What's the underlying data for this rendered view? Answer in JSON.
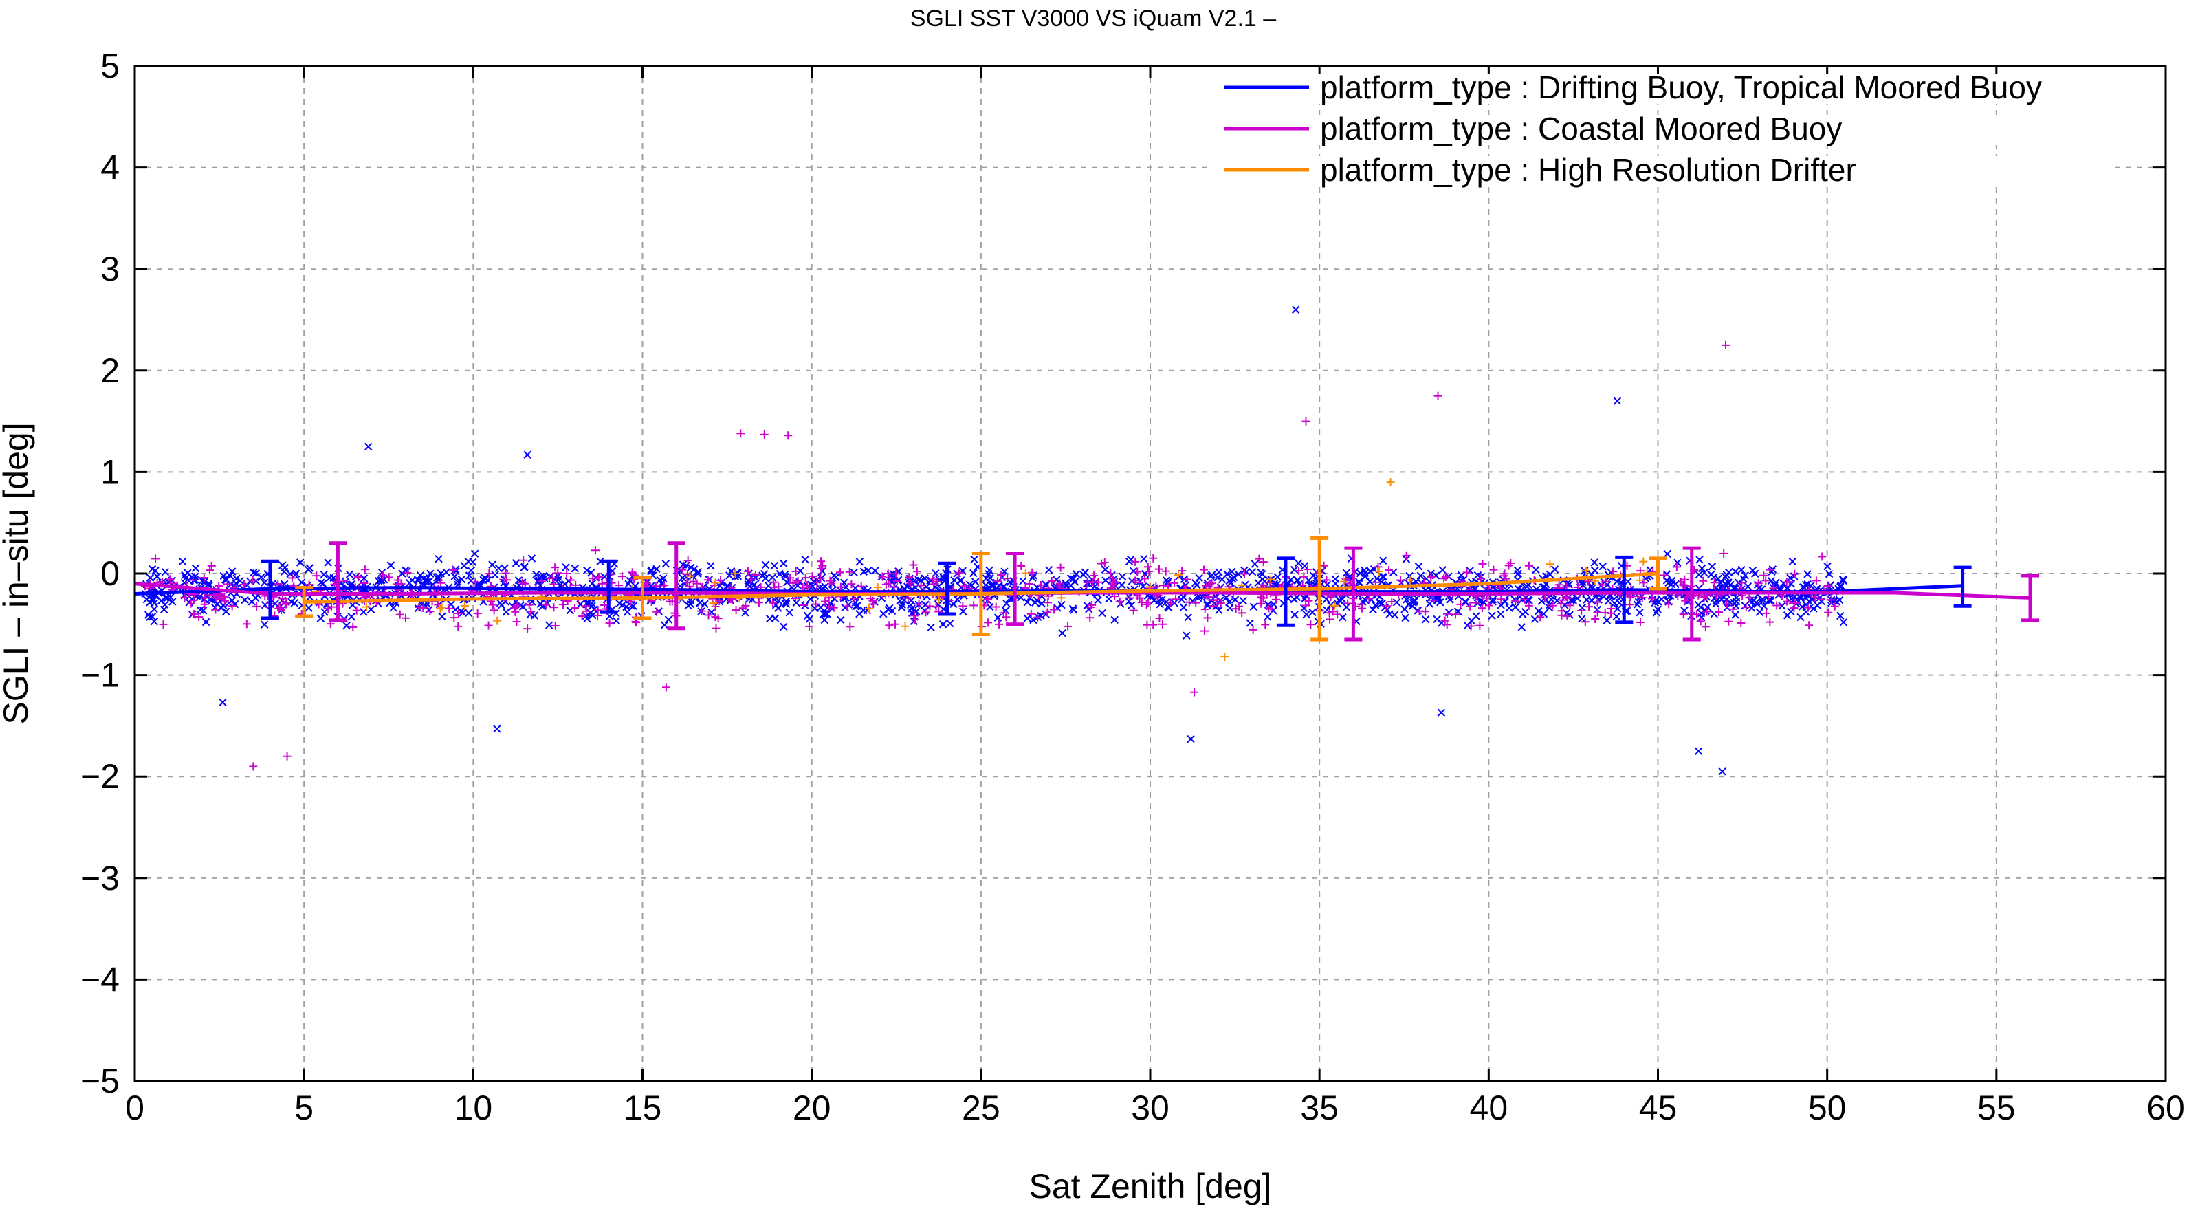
{
  "chart_data": {
    "type": "scatter",
    "title": "SGLI SST V3000 VS iQuam V2.1  –",
    "xlabel": "Sat Zenith [deg]",
    "ylabel": "SGLI – in–situ [deg]",
    "xlim": [
      0,
      60
    ],
    "ylim": [
      -5,
      5
    ],
    "x_ticks": [
      0,
      5,
      10,
      15,
      20,
      25,
      30,
      35,
      40,
      45,
      50,
      55,
      60
    ],
    "y_ticks": [
      -5,
      -4,
      -3,
      -2,
      -1,
      0,
      1,
      2,
      3,
      4,
      5
    ],
    "x_tick_labels": [
      "0",
      "5",
      "10",
      "15",
      "20",
      "25",
      "30",
      "35",
      "40",
      "45",
      "50",
      "55",
      "60"
    ],
    "y_tick_labels": [
      "−5",
      "−4",
      "−3",
      "−2",
      "−1",
      "0",
      "1",
      "2",
      "3",
      "4",
      "5"
    ],
    "grid": true,
    "legend_position": "top-right",
    "series": [
      {
        "name": "platform_type : Drifting Buoy, Tropical Moored Buoy",
        "color": "#0000ff",
        "marker": "x",
        "mean_line": {
          "x": [
            0,
            4,
            8,
            12,
            16,
            20,
            24,
            28,
            32,
            36,
            40,
            44,
            48,
            50,
            54
          ],
          "y": [
            -0.2,
            -0.15,
            -0.14,
            -0.15,
            -0.16,
            -0.18,
            -0.18,
            -0.17,
            -0.18,
            -0.18,
            -0.18,
            -0.16,
            -0.18,
            -0.18,
            -0.12
          ]
        },
        "error_bars": [
          {
            "x": 4,
            "y": -0.16,
            "err": 0.28
          },
          {
            "x": 14,
            "y": -0.13,
            "err": 0.25
          },
          {
            "x": 24,
            "y": -0.15,
            "err": 0.25
          },
          {
            "x": 34,
            "y": -0.18,
            "err": 0.33
          },
          {
            "x": 44,
            "y": -0.16,
            "err": 0.32
          },
          {
            "x": 54,
            "y": -0.13,
            "err": 0.19
          }
        ],
        "notable_points": [
          {
            "x": 34.3,
            "y": 2.6
          },
          {
            "x": 43.8,
            "y": 1.7
          },
          {
            "x": 6.9,
            "y": 1.25
          },
          {
            "x": 11.6,
            "y": 1.17
          },
          {
            "x": 2.6,
            "y": -1.27
          },
          {
            "x": 10.7,
            "y": -1.53
          },
          {
            "x": 31.2,
            "y": -1.63
          },
          {
            "x": 46.2,
            "y": -1.75
          },
          {
            "x": 46.9,
            "y": -1.95
          },
          {
            "x": 38.6,
            "y": -1.37
          }
        ]
      },
      {
        "name": "platform_type : Coastal Moored Buoy",
        "color": "#cc00cc",
        "marker": "+",
        "mean_line": {
          "x": [
            0,
            4,
            8,
            12,
            16,
            20,
            24,
            28,
            32,
            36,
            40,
            44,
            48,
            52,
            56
          ],
          "y": [
            -0.1,
            -0.2,
            -0.2,
            -0.19,
            -0.19,
            -0.2,
            -0.2,
            -0.19,
            -0.19,
            -0.2,
            -0.2,
            -0.19,
            -0.19,
            -0.19,
            -0.24
          ]
        },
        "error_bars": [
          {
            "x": 6,
            "y": -0.08,
            "err": 0.38
          },
          {
            "x": 16,
            "y": -0.12,
            "err": 0.42
          },
          {
            "x": 26,
            "y": -0.15,
            "err": 0.35
          },
          {
            "x": 36,
            "y": -0.2,
            "err": 0.45
          },
          {
            "x": 46,
            "y": -0.2,
            "err": 0.45
          },
          {
            "x": 56,
            "y": -0.24,
            "err": 0.22
          }
        ],
        "notable_points": [
          {
            "x": 47,
            "y": 2.25
          },
          {
            "x": 38.5,
            "y": 1.75
          },
          {
            "x": 34.6,
            "y": 1.5
          },
          {
            "x": 17.9,
            "y": 1.38
          },
          {
            "x": 18.6,
            "y": 1.37
          },
          {
            "x": 19.3,
            "y": 1.36
          },
          {
            "x": 3.5,
            "y": -1.9
          },
          {
            "x": 4.5,
            "y": -1.8
          },
          {
            "x": 15.7,
            "y": -1.12
          },
          {
            "x": 31.3,
            "y": -1.17
          }
        ]
      },
      {
        "name": "platform_type : High Resolution Drifter",
        "color": "#ff8c00",
        "marker": "+",
        "mean_line": {
          "x": [
            5,
            10,
            15,
            20,
            25,
            30,
            35,
            40,
            45
          ],
          "y": [
            -0.28,
            -0.25,
            -0.24,
            -0.21,
            -0.2,
            -0.17,
            -0.15,
            -0.1,
            0
          ]
        },
        "error_bars": [
          {
            "x": 5,
            "y": -0.28,
            "err": 0.14
          },
          {
            "x": 15,
            "y": -0.24,
            "err": 0.2
          },
          {
            "x": 25,
            "y": -0.2,
            "err": 0.4
          },
          {
            "x": 35,
            "y": -0.15,
            "err": 0.5
          },
          {
            "x": 45,
            "y": 0,
            "err": 0.15
          }
        ],
        "notable_points": [
          {
            "x": 37.1,
            "y": 0.9
          },
          {
            "x": 32.2,
            "y": -0.82
          }
        ]
      }
    ]
  }
}
